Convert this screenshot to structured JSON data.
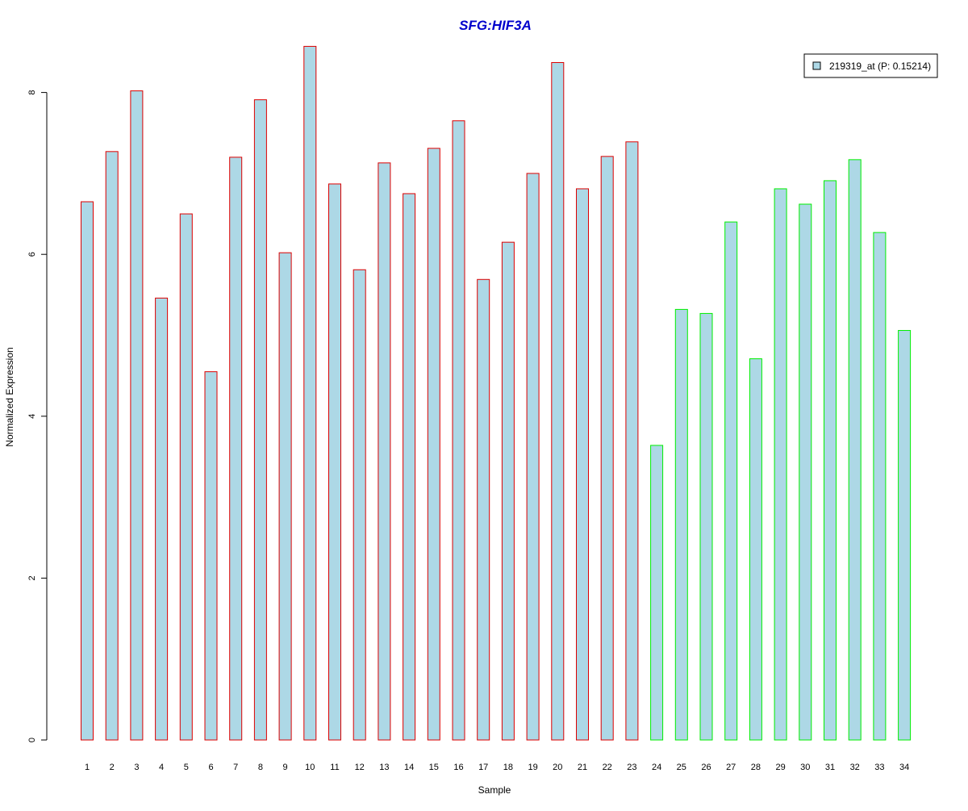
{
  "chart_data": {
    "type": "bar",
    "title": "SFG:HIF3A",
    "xlabel": "Sample",
    "ylabel": "Normalized Expression",
    "categories": [
      "1",
      "2",
      "3",
      "4",
      "5",
      "6",
      "7",
      "8",
      "9",
      "10",
      "11",
      "12",
      "13",
      "14",
      "15",
      "16",
      "17",
      "18",
      "19",
      "20",
      "21",
      "22",
      "23",
      "24",
      "25",
      "26",
      "27",
      "28",
      "29",
      "30",
      "31",
      "32",
      "33",
      "34"
    ],
    "series": [
      {
        "name": "219319_at (P: 0.15214)",
        "values": [
          6.65,
          7.27,
          8.02,
          5.46,
          6.5,
          4.55,
          7.2,
          7.91,
          6.02,
          8.57,
          6.87,
          5.81,
          7.13,
          6.75,
          7.31,
          7.65,
          5.69,
          6.15,
          7.0,
          8.37,
          6.81,
          7.21,
          7.39,
          3.64,
          5.32,
          5.27,
          6.4,
          4.71,
          6.81,
          6.62,
          6.91,
          7.17,
          6.27,
          5.06
        ]
      }
    ],
    "groups": [
      {
        "from": 1,
        "to": 23,
        "border_color": "#dd0000"
      },
      {
        "from": 24,
        "to": 34,
        "border_color": "#00ee00"
      }
    ],
    "bar_fill": "#add8e6",
    "title_color": "#0000cc",
    "ylim": [
      0,
      8.6
    ],
    "yticks": [
      0,
      2,
      4,
      6,
      8
    ],
    "grid": false,
    "legend_position": "top-right"
  }
}
